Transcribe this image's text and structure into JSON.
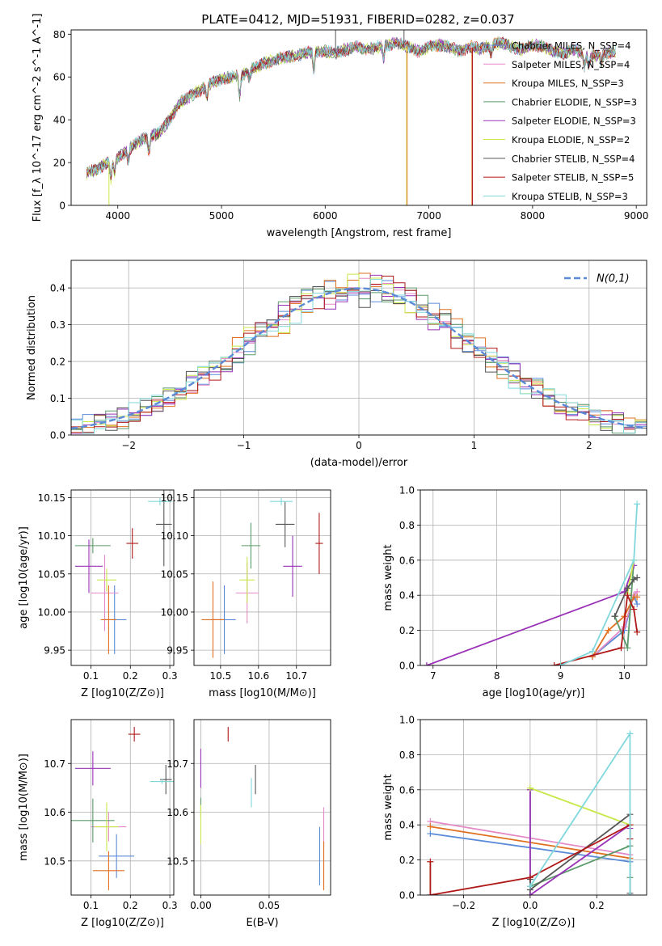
{
  "figure_title": "PLATE=0412, MJD=51931, FIBERID=0282, z=0.037",
  "colors": {
    "Chabrier MILES": "#5b8bd8",
    "Salpeter MILES": "#e58ac8",
    "Kroupa MILES": "#e07020",
    "Chabrier ELODIE": "#5a9a6a",
    "Salpeter ELODIE": "#9a32b8",
    "Kroupa ELODIE": "#c8e84a",
    "Chabrier STELIB": "#555555",
    "Salpeter STELIB": "#b01818",
    "Kroupa STELIB": "#80d8dc"
  },
  "chart_data": [
    {
      "id": "spectrum",
      "type": "line",
      "title": "PLATE=0412, MJD=51931, FIBERID=0282, z=0.037",
      "xlabel": "wavelength [Angstrom, rest frame]",
      "ylabel": "Flux [f_λ 10^-17 erg cm^-2 s^-1 A^-1]",
      "xlim": [
        3550,
        9100
      ],
      "ylim": [
        0,
        82
      ],
      "xticks": [
        4000,
        5000,
        6000,
        7000,
        8000,
        9000
      ],
      "yticks": [
        0,
        20,
        40,
        60,
        80
      ],
      "legend_position": "right",
      "envelope": {
        "x": [
          3700,
          3800,
          3900,
          4000,
          4100,
          4200,
          4300,
          4400,
          4500,
          4600,
          4700,
          4800,
          4900,
          5000,
          5100,
          5200,
          5300,
          5400,
          5500,
          5600,
          5700,
          5800,
          5900,
          6000,
          6100,
          6200,
          6300,
          6400,
          6500,
          6600,
          6700,
          6800,
          6900,
          7000,
          7100,
          7200,
          7300,
          7400,
          7500,
          7600,
          7700,
          7800,
          7900,
          8000,
          8100,
          8200,
          8300,
          8400,
          8500,
          8600,
          8700,
          8800
        ],
        "y": [
          15,
          17,
          20,
          22,
          26,
          30,
          32,
          34,
          40,
          48,
          51,
          54,
          57,
          59,
          60,
          61,
          64,
          66,
          68,
          69,
          70,
          71,
          72,
          72,
          71,
          73,
          74,
          73,
          74,
          75,
          76,
          74,
          72,
          74,
          75,
          74,
          72,
          74,
          73,
          75,
          76,
          74,
          73,
          75,
          74,
          72,
          71,
          73,
          70,
          70,
          71,
          72
        ]
      },
      "series": [
        {
          "name": "Chabrier MILES, N_SSP=4"
        },
        {
          "name": "Salpeter MILES, N_SSP=4"
        },
        {
          "name": "Kroupa MILES, N_SSP=3"
        },
        {
          "name": "Chabrier ELODIE, N_SSP=3"
        },
        {
          "name": "Salpeter ELODIE, N_SSP=3"
        },
        {
          "name": "Kroupa ELODIE, N_SSP=2"
        },
        {
          "name": "Chabrier STELIB, N_SSP=4"
        },
        {
          "name": "Salpeter STELIB, N_SSP=5"
        },
        {
          "name": "Kroupa STELIB, N_SSP=3"
        }
      ]
    },
    {
      "id": "residuals",
      "type": "step",
      "xlabel": "(data-model)/error",
      "ylabel": "Normed distribution",
      "xlim": [
        -2.5,
        2.5
      ],
      "ylim": [
        0,
        0.475
      ],
      "xticks": [
        -2,
        -1,
        0,
        1,
        2
      ],
      "yticks": [
        0.0,
        0.1,
        0.2,
        0.3,
        0.4
      ],
      "grid": true,
      "legend": [
        {
          "name": "N(0,1)",
          "style": "dashed",
          "color": "#5b8bd8"
        }
      ],
      "legend_position": "top-right",
      "reference_curve": "normal(0,1)"
    },
    {
      "id": "age_vs_Z",
      "type": "errorbar",
      "xlabel": "Z [log10(Z/Z⊙)]",
      "ylabel": "age [log10(age/yr)]",
      "xlim": [
        0.05,
        0.31
      ],
      "ylim": [
        9.93,
        10.16
      ],
      "xticks": [
        0.1,
        0.2,
        0.3
      ],
      "yticks": [
        9.95,
        10.0,
        10.05,
        10.1,
        10.15
      ],
      "grid": true,
      "points": [
        {
          "s": "Chabrier MILES",
          "x": 0.16,
          "xe": 0.03,
          "y": 9.99,
          "ye": 0.045
        },
        {
          "s": "Salpeter MILES",
          "x": 0.135,
          "xe": 0.035,
          "y": 10.025,
          "ye": 0.05
        },
        {
          "s": "Kroupa MILES",
          "x": 0.145,
          "xe": 0.02,
          "y": 9.99,
          "ye": 0.045
        },
        {
          "s": "Chabrier ELODIE",
          "x": 0.105,
          "xe": 0.045,
          "y": 10.087,
          "ye": 0.01
        },
        {
          "s": "Salpeter ELODIE",
          "x": 0.095,
          "xe": 0.035,
          "y": 10.06,
          "ye": 0.035
        },
        {
          "s": "Kroupa ELODIE",
          "x": 0.14,
          "xe": 0.025,
          "y": 10.042,
          "ye": 0.015
        },
        {
          "s": "Chabrier STELIB",
          "x": 0.285,
          "xe": 0.02,
          "y": 10.115,
          "ye": 0.055
        },
        {
          "s": "Salpeter STELIB",
          "x": 0.205,
          "xe": 0.015,
          "y": 10.09,
          "ye": 0.02
        },
        {
          "s": "Kroupa STELIB",
          "x": 0.275,
          "xe": 0.03,
          "y": 10.145,
          "ye": 0.005
        }
      ]
    },
    {
      "id": "age_vs_mass",
      "type": "errorbar",
      "xlabel": "mass [log10(M/M⊙)]",
      "ylabel": "",
      "xlim": [
        10.43,
        10.79
      ],
      "ylim": [
        9.93,
        10.16
      ],
      "xticks": [
        10.5,
        10.6,
        10.7
      ],
      "yticks": [
        9.95,
        10.0,
        10.05,
        10.1,
        10.15
      ],
      "grid": true,
      "points": [
        {
          "s": "Chabrier MILES",
          "x": 10.51,
          "xe": 0.03,
          "y": 9.99,
          "ye": 0.045
        },
        {
          "s": "Salpeter MILES",
          "x": 10.57,
          "xe": 0.03,
          "y": 10.025,
          "ye": 0.04
        },
        {
          "s": "Kroupa MILES",
          "x": 10.48,
          "xe": 0.03,
          "y": 9.99,
          "ye": 0.05
        },
        {
          "s": "Chabrier ELODIE",
          "x": 10.58,
          "xe": 0.025,
          "y": 10.087,
          "ye": 0.03
        },
        {
          "s": "Salpeter ELODIE",
          "x": 10.69,
          "xe": 0.025,
          "y": 10.06,
          "ye": 0.04
        },
        {
          "s": "Kroupa ELODIE",
          "x": 10.57,
          "xe": 0.02,
          "y": 10.042,
          "ye": 0.03
        },
        {
          "s": "Chabrier STELIB",
          "x": 10.67,
          "xe": 0.025,
          "y": 10.115,
          "ye": 0.03
        },
        {
          "s": "Salpeter STELIB",
          "x": 10.76,
          "xe": 0.01,
          "y": 10.09,
          "ye": 0.04
        },
        {
          "s": "Kroupa STELIB",
          "x": 10.66,
          "xe": 0.03,
          "y": 10.145,
          "ye": 0.005
        }
      ]
    },
    {
      "id": "weight_vs_age",
      "type": "line",
      "xlabel": "age [log10(age/yr)]",
      "ylabel": "mass weight",
      "xlim": [
        6.8,
        10.35
      ],
      "ylim": [
        0,
        1.0
      ],
      "xticks": [
        7,
        8,
        9,
        10
      ],
      "yticks": [
        0.0,
        0.2,
        0.4,
        0.6,
        0.8,
        1.0
      ],
      "grid": true,
      "series": [
        {
          "s": "Chabrier MILES",
          "x": [
            9.5,
            10.0,
            10.15,
            10.2
          ],
          "y": [
            0.05,
            0.2,
            0.4,
            0.35
          ]
        },
        {
          "s": "Salpeter MILES",
          "x": [
            9.5,
            10.0,
            10.15,
            10.2
          ],
          "y": [
            0.05,
            0.22,
            0.4,
            0.42
          ]
        },
        {
          "s": "Kroupa MILES",
          "x": [
            9.5,
            9.75,
            10.0,
            10.15,
            10.2
          ],
          "y": [
            0.05,
            0.2,
            0.28,
            0.39,
            0.39
          ]
        },
        {
          "s": "Chabrier ELODIE",
          "x": [
            9.85,
            10.05,
            10.15
          ],
          "y": [
            0.28,
            0.1,
            0.6
          ]
        },
        {
          "s": "Salpeter ELODIE",
          "x": [
            6.9,
            10.0,
            10.15
          ],
          "y": [
            0.0,
            0.42,
            0.57
          ]
        },
        {
          "s": "Kroupa ELODIE",
          "x": [
            10.05,
            10.15
          ],
          "y": [
            0.41,
            0.6
          ]
        },
        {
          "s": "Chabrier STELIB",
          "x": [
            9.85,
            10.05,
            10.15,
            10.2
          ],
          "y": [
            0.28,
            0.44,
            0.49,
            0.5
          ]
        },
        {
          "s": "Salpeter STELIB",
          "x": [
            8.9,
            9.95,
            10.05,
            10.15,
            10.2
          ],
          "y": [
            0.0,
            0.1,
            0.4,
            0.32,
            0.19
          ]
        },
        {
          "s": "Kroupa STELIB",
          "x": [
            9.0,
            9.5,
            10.15,
            10.2
          ],
          "y": [
            0.0,
            0.08,
            0.6,
            0.92
          ]
        }
      ]
    },
    {
      "id": "mass_vs_Z",
      "type": "errorbar",
      "xlabel": "Z [log10(Z/Z⊙)]",
      "ylabel": "mass [log10(M/M⊙)]",
      "xlim": [
        0.05,
        0.31
      ],
      "ylim": [
        10.43,
        10.79
      ],
      "xticks": [
        0.1,
        0.2,
        0.3
      ],
      "yticks": [
        10.5,
        10.6,
        10.7
      ],
      "grid": true,
      "points": [
        {
          "s": "Chabrier MILES",
          "x": 0.165,
          "xe": 0.045,
          "y": 10.51,
          "ye": 0.045
        },
        {
          "s": "Salpeter MILES",
          "x": 0.145,
          "xe": 0.045,
          "y": 10.57,
          "ye": 0.03
        },
        {
          "s": "Kroupa MILES",
          "x": 0.145,
          "xe": 0.04,
          "y": 10.48,
          "ye": 0.04
        },
        {
          "s": "Chabrier ELODIE",
          "x": 0.105,
          "xe": 0.055,
          "y": 10.583,
          "ye": 0.045
        },
        {
          "s": "Salpeter ELODIE",
          "x": 0.105,
          "xe": 0.045,
          "y": 10.69,
          "ye": 0.035
        },
        {
          "s": "Kroupa ELODIE",
          "x": 0.14,
          "xe": 0.03,
          "y": 10.57,
          "ye": 0.05
        },
        {
          "s": "Chabrier STELIB",
          "x": 0.29,
          "xe": 0.015,
          "y": 10.667,
          "ye": 0.03
        },
        {
          "s": "Salpeter STELIB",
          "x": 0.21,
          "xe": 0.015,
          "y": 10.76,
          "ye": 0.015
        },
        {
          "s": "Kroupa STELIB",
          "x": 0.28,
          "xe": 0.03,
          "y": 10.663,
          "ye": 0.005
        }
      ]
    },
    {
      "id": "mass_vs_ebv",
      "type": "errorbar",
      "xlabel": "E(B-V)",
      "ylabel": "",
      "xlim": [
        -0.005,
        0.095
      ],
      "ylim": [
        10.43,
        10.79
      ],
      "xticks": [
        0.0,
        0.05
      ],
      "yticks": [
        10.5,
        10.6,
        10.7
      ],
      "grid": true,
      "points": [
        {
          "s": "Chabrier MILES",
          "x": 0.087,
          "y": 10.51,
          "ye": 0.06
        },
        {
          "s": "Salpeter MILES",
          "x": 0.09,
          "y": 10.57,
          "ye": 0.04
        },
        {
          "s": "Kroupa MILES",
          "x": 0.09,
          "y": 10.49,
          "ye": 0.05
        },
        {
          "s": "Chabrier ELODIE",
          "x": 0.0,
          "y": 10.61,
          "ye": 0.02
        },
        {
          "s": "Salpeter ELODIE",
          "x": 0.0,
          "y": 10.69,
          "ye": 0.04
        },
        {
          "s": "Kroupa ELODIE",
          "x": 0.0,
          "y": 10.575,
          "ye": 0.04
        },
        {
          "s": "Chabrier STELIB",
          "x": 0.04,
          "y": 10.667,
          "ye": 0.03
        },
        {
          "s": "Salpeter STELIB",
          "x": 0.02,
          "y": 10.76,
          "ye": 0.015
        },
        {
          "s": "Kroupa STELIB",
          "x": 0.037,
          "y": 10.64,
          "ye": 0.03
        }
      ]
    },
    {
      "id": "weight_vs_Z",
      "type": "line",
      "xlabel": "Z [log10(Z/Z⊙)]",
      "ylabel": "mass weight",
      "xlim": [
        -0.33,
        0.35
      ],
      "ylim": [
        0,
        1.0
      ],
      "xticks": [
        -0.2,
        0.0,
        0.2
      ],
      "yticks": [
        0.0,
        0.2,
        0.4,
        0.6,
        0.8,
        1.0
      ],
      "grid": true,
      "series": [
        {
          "s": "Chabrier MILES",
          "x": [
            -0.3,
            0.3
          ],
          "y": [
            0.35,
            0.19
          ]
        },
        {
          "s": "Salpeter MILES",
          "x": [
            -0.3,
            0.3
          ],
          "y": [
            0.42,
            0.23
          ]
        },
        {
          "s": "Kroupa MILES",
          "x": [
            -0.3,
            0.3
          ],
          "y": [
            0.39,
            0.21
          ]
        },
        {
          "s": "Chabrier ELODIE",
          "x": [
            0.0,
            0.0,
            0.3,
            0.3
          ],
          "y": [
            0.6,
            0.05,
            0.28,
            0.1
          ]
        },
        {
          "s": "Salpeter ELODIE",
          "x": [
            0.0,
            0.0,
            0.3,
            0.3
          ],
          "y": [
            0.6,
            0.0,
            0.4,
            0.38
          ]
        },
        {
          "s": "Kroupa ELODIE",
          "x": [
            0.0,
            0.3
          ],
          "y": [
            0.61,
            0.4
          ]
        },
        {
          "s": "Chabrier STELIB",
          "x": [
            0.0,
            0.0,
            0.3,
            0.3
          ],
          "y": [
            0.09,
            0.03,
            0.46,
            0.01
          ]
        },
        {
          "s": "Salpeter STELIB",
          "x": [
            -0.3,
            -0.3,
            0.0,
            0.3,
            0.3
          ],
          "y": [
            0.19,
            0.0,
            0.1,
            0.4,
            0.32
          ]
        },
        {
          "s": "Kroupa STELIB",
          "x": [
            0.0,
            0.3,
            0.3
          ],
          "y": [
            0.05,
            0.92,
            0.0
          ]
        }
      ]
    }
  ]
}
